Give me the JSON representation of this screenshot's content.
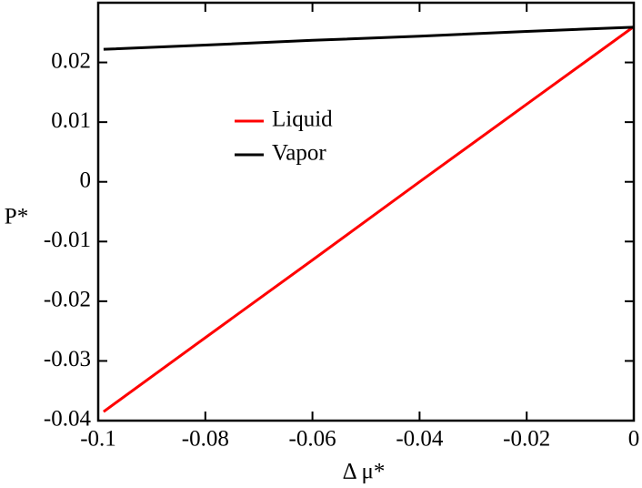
{
  "chart_data": {
    "type": "line",
    "xlabel": "Δ μ*",
    "ylabel": "P*",
    "x": [
      -0.099,
      -0.08,
      -0.06,
      -0.04,
      -0.02,
      0
    ],
    "series": [
      {
        "name": "Liquid",
        "color": "#ff0000",
        "values": [
          -0.0385,
          -0.0261,
          -0.0131,
          0.0,
          0.013,
          0.026
        ]
      },
      {
        "name": "Vapor",
        "color": "#000000",
        "values": [
          0.0222,
          0.0229,
          0.0237,
          0.0244,
          0.0252,
          0.0259
        ]
      }
    ],
    "xlim": [
      -0.1,
      0
    ],
    "xticks": [
      -0.1,
      -0.08,
      -0.06,
      -0.04,
      -0.02,
      0
    ],
    "ylim": [
      -0.04,
      0.03
    ],
    "yticks": [
      -0.04,
      -0.03,
      -0.02,
      -0.01,
      0,
      0.01,
      0.02
    ],
    "grid": false
  }
}
